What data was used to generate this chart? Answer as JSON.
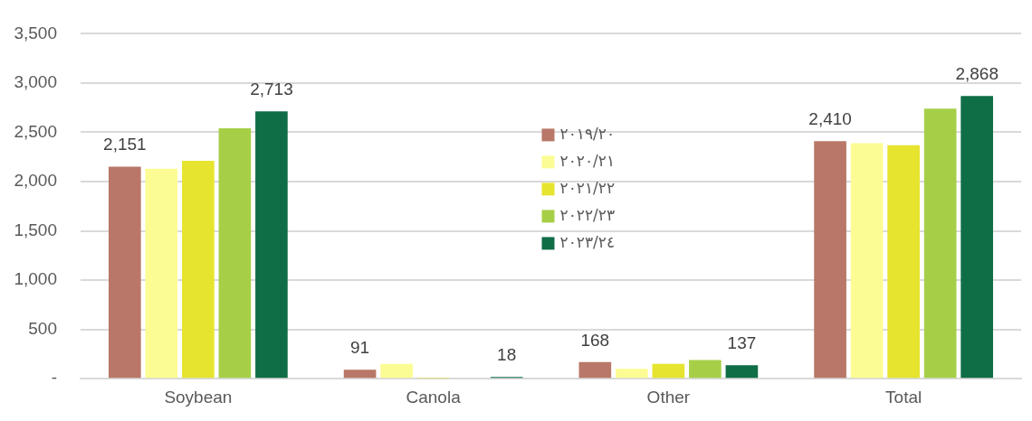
{
  "chart_data": {
    "type": "bar",
    "categories": [
      "Soybean",
      "Canola",
      "Other",
      "Total"
    ],
    "series": [
      {
        "name": "٢٠١٩/٢٠",
        "color": "#b87768",
        "values": [
          2151,
          91,
          168,
          2410
        ],
        "value_labels": [
          "2,151",
          "91",
          "168",
          "2,410"
        ]
      },
      {
        "name": "٢٠٢٠/٢١",
        "color": "#fcfc94",
        "values": [
          2130,
          150,
          100,
          2390
        ],
        "value_labels": [
          null,
          null,
          null,
          null
        ]
      },
      {
        "name": "٢٠٢١/٢٢",
        "color": "#e6e42e",
        "values": [
          2210,
          5,
          150,
          2370
        ],
        "value_labels": [
          null,
          null,
          null,
          null
        ]
      },
      {
        "name": "٢٠٢٢/٢٣",
        "color": "#a6cf47",
        "values": [
          2540,
          0,
          190,
          2740
        ],
        "value_labels": [
          null,
          null,
          null,
          null
        ]
      },
      {
        "name": "٢٠٢٣/٢٤",
        "color": "#0f6e46",
        "values": [
          2713,
          18,
          137,
          2868
        ],
        "value_labels": [
          "2,713",
          "18",
          "137",
          "2,868"
        ]
      }
    ],
    "ylim": [
      0,
      3500
    ],
    "yticks": [
      {
        "value": 0,
        "label": "-"
      },
      {
        "value": 500,
        "label": "500"
      },
      {
        "value": 1000,
        "label": "1,000"
      },
      {
        "value": 1500,
        "label": "1,500"
      },
      {
        "value": 2000,
        "label": "2,000"
      },
      {
        "value": 2500,
        "label": "2,500"
      },
      {
        "value": 3000,
        "label": "3,000"
      },
      {
        "value": 3500,
        "label": "3,500"
      }
    ],
    "grid": "y",
    "legend": "top"
  }
}
